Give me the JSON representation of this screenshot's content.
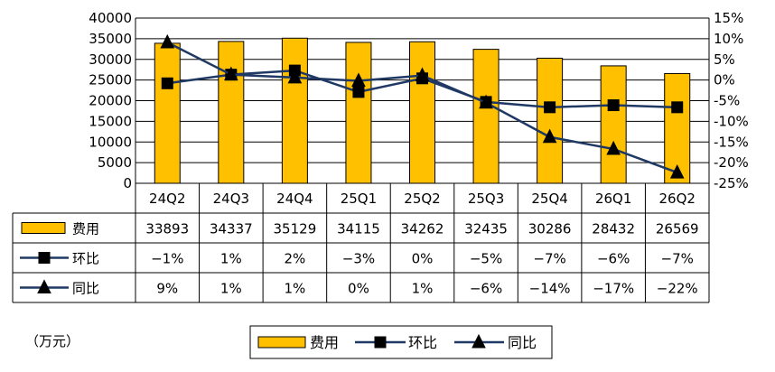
{
  "chart_data": {
    "type": "bar",
    "categories": [
      "24Q2",
      "24Q3",
      "24Q4",
      "25Q1",
      "25Q2",
      "25Q3",
      "25Q4",
      "26Q1",
      "26Q2"
    ],
    "series": [
      {
        "name": "费用",
        "type": "bar",
        "axis": "left",
        "color": "#FFC000",
        "values": [
          33893,
          34337,
          35129,
          34115,
          34262,
          32435,
          30286,
          28432,
          26569
        ],
        "labels": [
          "33893",
          "34337",
          "35129",
          "34115",
          "34262",
          "32435",
          "30286",
          "28432",
          "26569"
        ]
      },
      {
        "name": "环比",
        "type": "line",
        "axis": "right",
        "marker": "square",
        "color": "#1F3864",
        "values": [
          -0.8,
          1.3,
          2.3,
          -2.9,
          0.4,
          -5.3,
          -6.6,
          -6.1,
          -6.6
        ],
        "labels": [
          "−1%",
          "1%",
          "2%",
          "−3%",
          "0%",
          "−5%",
          "−7%",
          "−6%",
          "−7%"
        ]
      },
      {
        "name": "同比",
        "type": "line",
        "axis": "right",
        "marker": "triangle",
        "color": "#1F3864",
        "values": [
          9.1,
          1.3,
          0.6,
          -0.2,
          1.1,
          -5.5,
          -13.8,
          -16.7,
          -22.4
        ],
        "labels": [
          "9%",
          "1%",
          "1%",
          "0%",
          "1%",
          "−6%",
          "−14%",
          "−17%",
          "−22%"
        ]
      }
    ],
    "y_left": {
      "min": 0,
      "max": 40000,
      "step": 5000,
      "ticks": [
        "0",
        "5000",
        "10000",
        "15000",
        "20000",
        "25000",
        "30000",
        "35000",
        "40000"
      ]
    },
    "y_right": {
      "min": -25,
      "max": 15,
      "step": 5,
      "ticks": [
        "-25%",
        "-20%",
        "-15%",
        "-10%",
        "-5%",
        "0%",
        "5%",
        "10%",
        "15%"
      ]
    },
    "grid": true,
    "legend_position": "bottom-right",
    "unit": "（万元）"
  },
  "legend": {
    "bar_label": "费用",
    "mom_label": "环比",
    "yoy_label": "同比"
  }
}
